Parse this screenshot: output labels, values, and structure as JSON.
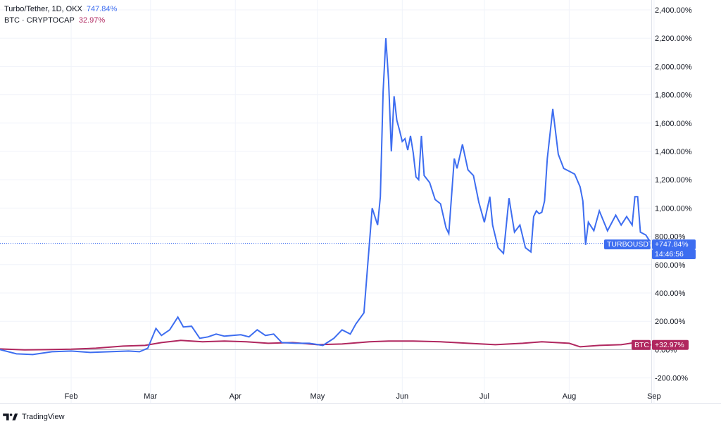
{
  "legend": {
    "turbo": {
      "symbol": "Turbo/Tether, 1D, OKX",
      "value": "747.84%",
      "color": "#3d6df0"
    },
    "btc": {
      "symbol": "BTC · CRYPTOCAP",
      "value": "32.97%",
      "color": "#b0275f"
    }
  },
  "branding": {
    "name": "TradingView",
    "icon": "tradingview-logo-icon"
  },
  "tags": {
    "turbo_name": "TURBOUSDT",
    "turbo_value": "+747.84%",
    "turbo_time": "14:46:56",
    "btc_name": "BTC",
    "btc_value": "+32.97%"
  },
  "chart_data": {
    "type": "line",
    "title": "",
    "xlabel": "",
    "ylabel": "",
    "y_unit": "%",
    "ylim": [
      -250,
      2450
    ],
    "y_ticks": [
      "2,400.00%",
      "2,200.00%",
      "2,000.00%",
      "1,800.00%",
      "1,600.00%",
      "1,400.00%",
      "1,200.00%",
      "1,000.00%",
      "800.00%",
      "600.00%",
      "400.00%",
      "200.00%",
      "0.00%",
      "-200.00%"
    ],
    "y_tick_values": [
      2400,
      2200,
      2000,
      1800,
      1600,
      1400,
      1200,
      1000,
      800,
      600,
      400,
      200,
      0,
      -200
    ],
    "x_ticks": [
      "Feb",
      "Mar",
      "Apr",
      "May",
      "Jun",
      "Jul",
      "Aug",
      "Sep"
    ],
    "x_tick_dates": [
      "2024-02-01",
      "2024-03-01",
      "2024-04-01",
      "2024-05-01",
      "2024-06-01",
      "2024-07-01",
      "2024-08-01",
      "2024-09-01"
    ],
    "xlim": [
      "2024-01-06",
      "2024-08-31"
    ],
    "grid": true,
    "series": [
      {
        "name": "Turbo/Tether, 1D, OKX",
        "color": "#3d6df0",
        "x": [
          "2024-01-06",
          "2024-01-12",
          "2024-01-18",
          "2024-01-25",
          "2024-02-01",
          "2024-02-08",
          "2024-02-15",
          "2024-02-22",
          "2024-02-26",
          "2024-02-29",
          "2024-03-03",
          "2024-03-05",
          "2024-03-08",
          "2024-03-11",
          "2024-03-13",
          "2024-03-16",
          "2024-03-19",
          "2024-03-22",
          "2024-03-25",
          "2024-03-28",
          "2024-03-31",
          "2024-04-03",
          "2024-04-06",
          "2024-04-09",
          "2024-04-12",
          "2024-04-15",
          "2024-04-18",
          "2024-04-23",
          "2024-04-28",
          "2024-05-03",
          "2024-05-07",
          "2024-05-10",
          "2024-05-13",
          "2024-05-15",
          "2024-05-18",
          "2024-05-21",
          "2024-05-23",
          "2024-05-24",
          "2024-05-25",
          "2024-05-26",
          "2024-05-27",
          "2024-05-28",
          "2024-05-29",
          "2024-05-30",
          "2024-05-31",
          "2024-06-01",
          "2024-06-02",
          "2024-06-03",
          "2024-06-04",
          "2024-06-05",
          "2024-06-06",
          "2024-06-07",
          "2024-06-08",
          "2024-06-09",
          "2024-06-11",
          "2024-06-13",
          "2024-06-15",
          "2024-06-17",
          "2024-06-18",
          "2024-06-20",
          "2024-06-21",
          "2024-06-23",
          "2024-06-25",
          "2024-06-27",
          "2024-06-29",
          "2024-07-01",
          "2024-07-03",
          "2024-07-04",
          "2024-07-06",
          "2024-07-08",
          "2024-07-10",
          "2024-07-12",
          "2024-07-14",
          "2024-07-16",
          "2024-07-18",
          "2024-07-19",
          "2024-07-20",
          "2024-07-21",
          "2024-07-22",
          "2024-07-23",
          "2024-07-24",
          "2024-07-26",
          "2024-07-28",
          "2024-07-30",
          "2024-08-01",
          "2024-08-03",
          "2024-08-05",
          "2024-08-06",
          "2024-08-07",
          "2024-08-08",
          "2024-08-10",
          "2024-08-12",
          "2024-08-15",
          "2024-08-18",
          "2024-08-20",
          "2024-08-22",
          "2024-08-24",
          "2024-08-25",
          "2024-08-26",
          "2024-08-27",
          "2024-08-29",
          "2024-08-31"
        ],
        "y": [
          0,
          -30,
          -35,
          -15,
          -10,
          -20,
          -15,
          -10,
          -15,
          10,
          150,
          100,
          140,
          230,
          160,
          165,
          80,
          90,
          110,
          95,
          100,
          105,
          90,
          140,
          100,
          110,
          50,
          45,
          45,
          30,
          80,
          140,
          110,
          180,
          260,
          1000,
          880,
          1080,
          1820,
          2200,
          1900,
          1400,
          1790,
          1620,
          1550,
          1470,
          1490,
          1410,
          1510,
          1390,
          1220,
          1200,
          1510,
          1230,
          1180,
          1060,
          1030,
          860,
          820,
          1350,
          1280,
          1450,
          1270,
          1230,
          1040,
          900,
          1080,
          880,
          720,
          680,
          1070,
          830,
          880,
          720,
          690,
          940,
          980,
          960,
          970,
          1050,
          1350,
          1700,
          1380,
          1280,
          1260,
          1240,
          1150,
          1050,
          740,
          900,
          840,
          980,
          840,
          950,
          880,
          940,
          880,
          1080,
          1080,
          830,
          810,
          750
        ],
        "last_value_label": "+747.84%"
      },
      {
        "name": "BTC · CRYPTOCAP",
        "color": "#b0275f",
        "x": [
          "2024-01-06",
          "2024-01-15",
          "2024-01-23",
          "2024-02-01",
          "2024-02-10",
          "2024-02-20",
          "2024-02-28",
          "2024-03-05",
          "2024-03-12",
          "2024-03-20",
          "2024-03-28",
          "2024-04-05",
          "2024-04-13",
          "2024-04-22",
          "2024-05-01",
          "2024-05-10",
          "2024-05-20",
          "2024-05-27",
          "2024-06-05",
          "2024-06-15",
          "2024-06-25",
          "2024-07-05",
          "2024-07-15",
          "2024-07-22",
          "2024-08-01",
          "2024-08-05",
          "2024-08-12",
          "2024-08-20",
          "2024-08-25",
          "2024-08-31"
        ],
        "y": [
          5,
          -2,
          0,
          3,
          10,
          25,
          30,
          50,
          65,
          55,
          60,
          55,
          45,
          50,
          35,
          40,
          55,
          60,
          60,
          55,
          45,
          35,
          45,
          55,
          45,
          20,
          30,
          35,
          50,
          33
        ],
        "last_value_label": "+32.97%"
      }
    ]
  }
}
